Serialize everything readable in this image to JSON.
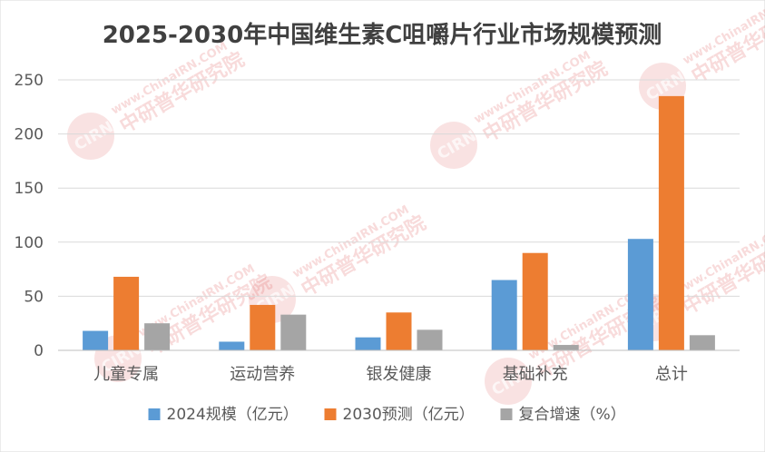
{
  "chart_data": {
    "type": "bar",
    "title": "2025-2030年中国维生素C咀嚼片行业市场规模预测",
    "categories": [
      "儿童专属",
      "运动营养",
      "银发健康",
      "基础补充",
      "总计"
    ],
    "series": [
      {
        "name": "2024规模（亿元）",
        "color": "#5b9bd5",
        "values": [
          18,
          8,
          12,
          65,
          103
        ]
      },
      {
        "name": "2030预测（亿元）",
        "color": "#ed7d31",
        "values": [
          68,
          42,
          35,
          90,
          235
        ]
      },
      {
        "name": "复合增速（%）",
        "color": "#a5a5a5",
        "values": [
          25,
          33,
          19,
          5,
          14
        ]
      }
    ],
    "yticks": [
      0,
      50,
      100,
      150,
      200,
      250
    ],
    "ylim": [
      0,
      250
    ],
    "grid": true,
    "legend_position": "bottom"
  },
  "watermark": {
    "url_text": "www.ChinaIRN.COM",
    "org_text": "中研普华研究院",
    "logo_text": "CIRN",
    "color": "#e06060"
  }
}
